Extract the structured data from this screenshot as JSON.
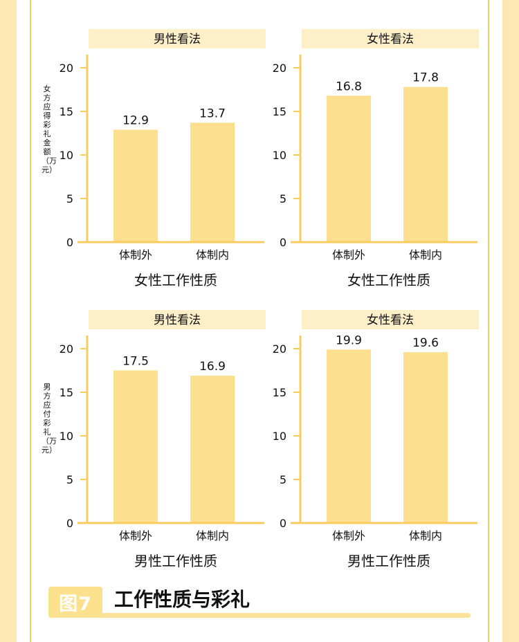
{
  "colors": {
    "bar": "#fde08f",
    "axis": "#f7cd62",
    "header_bg": "#fdefc8",
    "page_bg": "#fde8b4"
  },
  "y_labels": {
    "top": "女方应得彩礼金额（万元）",
    "bottom": "男方应付彩礼（万元）"
  },
  "footer": {
    "badge": "图7",
    "title": "工作性质与彩礼"
  },
  "chart_data": [
    {
      "type": "bar",
      "title": "男性看法",
      "xlabel": "女性工作性质",
      "ylabel": "女方应得彩礼金额（万元）",
      "categories": [
        "体制外",
        "体制内"
      ],
      "values": [
        12.9,
        13.7
      ],
      "ylim": [
        0,
        20
      ],
      "yticks": [
        0,
        5,
        10,
        15,
        20
      ]
    },
    {
      "type": "bar",
      "title": "女性看法",
      "xlabel": "女性工作性质",
      "ylabel": "",
      "categories": [
        "体制外",
        "体制内"
      ],
      "values": [
        16.8,
        17.8
      ],
      "ylim": [
        0,
        20
      ],
      "yticks": [
        0,
        5,
        10,
        15,
        20
      ]
    },
    {
      "type": "bar",
      "title": "男性看法",
      "xlabel": "男性工作性质",
      "ylabel": "男方应付彩礼（万元）",
      "categories": [
        "体制外",
        "体制内"
      ],
      "values": [
        17.5,
        16.9
      ],
      "ylim": [
        0,
        20
      ],
      "yticks": [
        0,
        5,
        10,
        15,
        20
      ]
    },
    {
      "type": "bar",
      "title": "女性看法",
      "xlabel": "男性工作性质",
      "ylabel": "",
      "categories": [
        "体制外",
        "体制内"
      ],
      "values": [
        19.9,
        19.6
      ],
      "ylim": [
        0,
        20
      ],
      "yticks": [
        0,
        5,
        10,
        15,
        20
      ]
    }
  ]
}
